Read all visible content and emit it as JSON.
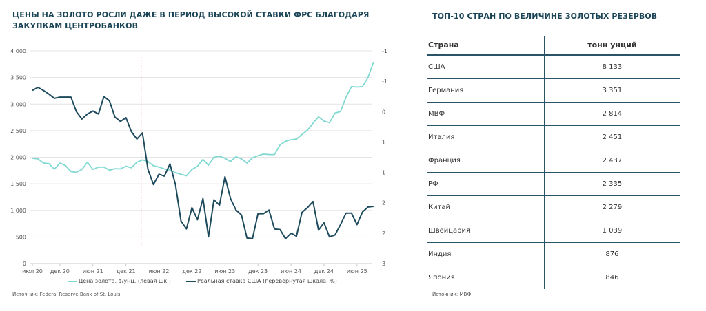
{
  "chart_title": "ЦЕНЫ НА ЗОЛОТО РОСЛИ ДАЖЕ В ПЕРИОД ВЫСОКОЙ СТАВКИ ФРС БЛАГОДАРЯ ЗАКУПКАМ ЦЕНТРОБАНКОВ",
  "chart_source": "Источник: Federal Reserve Bank of St. Louis",
  "table_title": "ТОП-10 СТРАН ПО ВЕЛИЧИНЕ ЗОЛОТЫХ РЕЗЕРВОВ",
  "table_source": "Источник: МВФ",
  "colors": {
    "gold": "#7fd8d1",
    "rate": "#1d4a5c",
    "marker": "#e83a3a",
    "accent": "#1b4557"
  },
  "table": {
    "headers": [
      "Страна",
      "тонн унций"
    ],
    "rows": [
      [
        "США",
        "8 133"
      ],
      [
        "Германия",
        "3 351"
      ],
      [
        "МВФ",
        "2 814"
      ],
      [
        "Италия",
        "2 451"
      ],
      [
        "Франция",
        "2 437"
      ],
      [
        "РФ",
        "2 335"
      ],
      [
        "Китай",
        "2 279"
      ],
      [
        "Швейцария",
        "1 039"
      ],
      [
        "Индия",
        "876"
      ],
      [
        "Япония",
        "846"
      ]
    ]
  },
  "chart_data": {
    "type": "line",
    "x_start": "2020-07",
    "x_end": "2025-09",
    "x_tick_labels": [
      "июл 20",
      "дек 20",
      "июн 21",
      "дек 21",
      "июн 22",
      "дек 22",
      "июн 23",
      "дек 23",
      "июн 24",
      "дек 24",
      "июн 25"
    ],
    "x_tick_months": [
      "2020-07",
      "2020-12",
      "2021-06",
      "2021-12",
      "2022-06",
      "2022-12",
      "2023-06",
      "2023-12",
      "2024-06",
      "2024-12",
      "2025-06"
    ],
    "y_left": {
      "range": [
        0,
        4000
      ],
      "ticks": [
        "0",
        "500",
        "1 000",
        "1 500",
        "2 000",
        "2 500",
        "3 000",
        "3 500",
        "4 000"
      ]
    },
    "y_right": {
      "range": [
        -1,
        2.5
      ],
      "inverted": true,
      "ticks": [
        "-1",
        "-1",
        "0",
        "1",
        "1",
        "2",
        "2",
        "3"
      ]
    },
    "vline_at": "2022-02",
    "grid": true,
    "legend_placement": "bottom",
    "series": [
      {
        "name": "Цена золота,  $/унц. (левая шк.)",
        "axis": "left",
        "values": [
          1980,
          1970,
          1890,
          1880,
          1775,
          1890,
          1845,
          1730,
          1715,
          1770,
          1905,
          1770,
          1815,
          1815,
          1755,
          1785,
          1780,
          1830,
          1800,
          1905,
          1950,
          1920,
          1840,
          1815,
          1780,
          1760,
          1710,
          1680,
          1650,
          1770,
          1830,
          1960,
          1850,
          2000,
          2020,
          1980,
          1920,
          2010,
          1970,
          1890,
          1990,
          2030,
          2060,
          2050,
          2050,
          2230,
          2300,
          2330,
          2340,
          2430,
          2510,
          2640,
          2760,
          2680,
          2650,
          2830,
          2860,
          3130,
          3330,
          3320,
          3330,
          3500,
          3790
        ]
      },
      {
        "name": "Реальная ставка США (перевернутая шкала, %)",
        "axis": "right",
        "values": [
          -0.35,
          -0.4,
          -0.35,
          -0.29,
          -0.22,
          -0.24,
          -0.24,
          -0.24,
          0.0,
          0.12,
          0.04,
          -0.01,
          0.04,
          -0.25,
          -0.18,
          0.09,
          0.16,
          0.1,
          0.33,
          0.45,
          0.35,
          0.95,
          1.2,
          1.03,
          1.06,
          0.86,
          1.2,
          1.8,
          1.93,
          1.58,
          1.78,
          1.43,
          2.06,
          1.45,
          1.54,
          1.07,
          1.43,
          1.62,
          1.7,
          2.08,
          2.09,
          1.68,
          1.68,
          1.62,
          1.93,
          1.94,
          2.09,
          2.0,
          2.05,
          1.66,
          1.58,
          1.48,
          1.95,
          1.83,
          2.06,
          2.03,
          1.86,
          1.67,
          1.67,
          1.86,
          1.65,
          1.57,
          1.56
        ]
      }
    ]
  }
}
